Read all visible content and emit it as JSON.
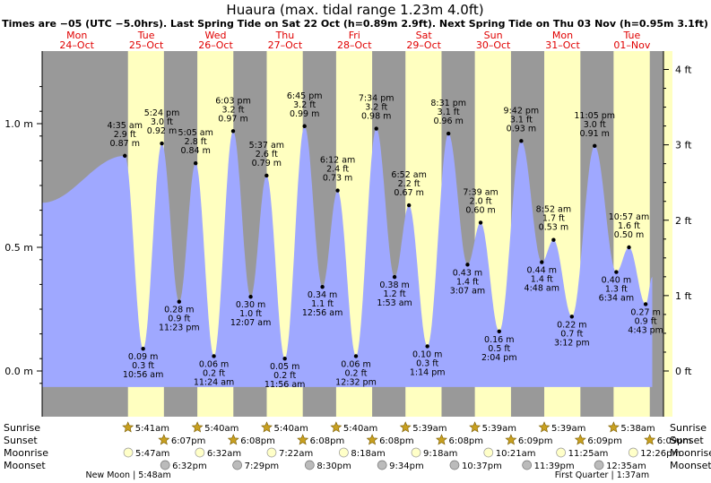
{
  "chart_data": {
    "type": "area",
    "title": "Huaura (max. tidal range 1.23m 4.0ft)",
    "subtitle": "Times are −05 (UTC −5.0hrs). Last Spring Tide on Sat 22 Oct (h=0.89m 2.9ft). Next Spring Tide on Thu 03 Nov (h=0.95m 3.1ft)",
    "days": [
      {
        "dow": "Mon",
        "date": "24–Oct"
      },
      {
        "dow": "Tue",
        "date": "25–Oct"
      },
      {
        "dow": "Wed",
        "date": "26–Oct"
      },
      {
        "dow": "Thu",
        "date": "27–Oct"
      },
      {
        "dow": "Fri",
        "date": "28–Oct"
      },
      {
        "dow": "Sat",
        "date": "29–Oct"
      },
      {
        "dow": "Sun",
        "date": "30–Oct"
      },
      {
        "dow": "Mon",
        "date": "31–Oct"
      },
      {
        "dow": "Tue",
        "date": "01–Nov"
      }
    ],
    "ylim_m": [
      -0.07,
      1.23
    ],
    "y_ticks_m": [
      "0.0 m",
      "0.5 m",
      "1.0 m"
    ],
    "y_ticks_ft": [
      "0 ft",
      "1 ft",
      "2 ft",
      "3 ft",
      "4 ft"
    ],
    "daylight_hours": [
      {
        "day": 1,
        "sunrise_h": 5.68,
        "sunset_h": 18.12
      },
      {
        "day": 2,
        "sunrise_h": 5.67,
        "sunset_h": 18.13
      },
      {
        "day": 3,
        "sunrise_h": 5.67,
        "sunset_h": 18.13
      },
      {
        "day": 4,
        "sunrise_h": 5.67,
        "sunset_h": 18.13
      },
      {
        "day": 5,
        "sunrise_h": 5.65,
        "sunset_h": 18.13
      },
      {
        "day": 6,
        "sunrise_h": 5.65,
        "sunset_h": 18.15
      },
      {
        "day": 7,
        "sunrise_h": 5.65,
        "sunset_h": 18.15
      },
      {
        "day": 8,
        "sunrise_h": 5.63,
        "sunset_h": 18.15
      }
    ],
    "tides": [
      {
        "t": 0.0,
        "h": 0.68,
        "label": false
      },
      {
        "t": 28.6,
        "h": 0.87,
        "time": "4:35 am",
        "ft": "2.9 ft",
        "m": "0.87 m",
        "type": "high"
      },
      {
        "t": 34.93,
        "h": 0.09,
        "time": "10:56 am",
        "ft": "0.3 ft",
        "m": "0.09 m",
        "type": "low"
      },
      {
        "t": 41.4,
        "h": 0.92,
        "time": "5:24 pm",
        "ft": "3.0 ft",
        "m": "0.92 m",
        "type": "high"
      },
      {
        "t": 47.38,
        "h": 0.28,
        "time": "11:23 pm",
        "ft": "0.9 ft",
        "m": "0.28 m",
        "type": "low"
      },
      {
        "t": 53.08,
        "h": 0.84,
        "time": "5:05 am",
        "ft": "2.8 ft",
        "m": "0.84 m",
        "type": "high"
      },
      {
        "t": 59.4,
        "h": 0.06,
        "time": "11:24 am",
        "ft": "0.2 ft",
        "m": "0.06 m",
        "type": "low"
      },
      {
        "t": 66.05,
        "h": 0.97,
        "time": "6:03 pm",
        "ft": "3.2 ft",
        "m": "0.97 m",
        "type": "high"
      },
      {
        "t": 72.12,
        "h": 0.3,
        "time": "12:07 am",
        "ft": "1.0 ft",
        "m": "0.30 m",
        "type": "low"
      },
      {
        "t": 77.62,
        "h": 0.79,
        "time": "5:37 am",
        "ft": "2.6 ft",
        "m": "0.79 m",
        "type": "high"
      },
      {
        "t": 83.93,
        "h": 0.05,
        "time": "11:56 am",
        "ft": "0.2 ft",
        "m": "0.05 m",
        "type": "low"
      },
      {
        "t": 90.75,
        "h": 0.99,
        "time": "6:45 pm",
        "ft": "3.2 ft",
        "m": "0.99 m",
        "type": "high"
      },
      {
        "t": 96.93,
        "h": 0.34,
        "time": "12:56 am",
        "ft": "1.1 ft",
        "m": "0.34 m",
        "type": "low"
      },
      {
        "t": 102.2,
        "h": 0.73,
        "time": "6:12 am",
        "ft": "2.4 ft",
        "m": "0.73 m",
        "type": "high"
      },
      {
        "t": 108.53,
        "h": 0.06,
        "time": "12:32 pm",
        "ft": "0.2 ft",
        "m": "0.06 m",
        "type": "low"
      },
      {
        "t": 115.57,
        "h": 0.98,
        "time": "7:34 pm",
        "ft": "3.2 ft",
        "m": "0.98 m",
        "type": "high"
      },
      {
        "t": 121.88,
        "h": 0.38,
        "time": "1:53 am",
        "ft": "1.2 ft",
        "m": "0.38 m",
        "type": "low"
      },
      {
        "t": 126.87,
        "h": 0.67,
        "time": "6:52 am",
        "ft": "2.2 ft",
        "m": "0.67 m",
        "type": "high"
      },
      {
        "t": 133.23,
        "h": 0.1,
        "time": "1:14 pm",
        "ft": "0.3 ft",
        "m": "0.10 m",
        "type": "low"
      },
      {
        "t": 140.52,
        "h": 0.96,
        "time": "8:31 pm",
        "ft": "3.1 ft",
        "m": "0.96 m",
        "type": "high"
      },
      {
        "t": 147.12,
        "h": 0.43,
        "time": "3:07 am",
        "ft": "1.4 ft",
        "m": "0.43 m",
        "type": "low"
      },
      {
        "t": 151.65,
        "h": 0.6,
        "time": "7:39 am",
        "ft": "2.0 ft",
        "m": "0.60 m",
        "type": "high"
      },
      {
        "t": 158.07,
        "h": 0.16,
        "time": "2:04 pm",
        "ft": "0.5 ft",
        "m": "0.16 m",
        "type": "low"
      },
      {
        "t": 165.7,
        "h": 0.93,
        "time": "9:42 pm",
        "ft": "3.1 ft",
        "m": "0.93 m",
        "type": "high"
      },
      {
        "t": 172.8,
        "h": 0.44,
        "time": "4:48 am",
        "ft": "1.4 ft",
        "m": "0.44 m",
        "type": "low"
      },
      {
        "t": 176.87,
        "h": 0.53,
        "time": "8:52 am",
        "ft": "1.7 ft",
        "m": "0.53 m",
        "type": "high"
      },
      {
        "t": 183.2,
        "h": 0.22,
        "time": "3:12 pm",
        "ft": "0.7 ft",
        "m": "0.22 m",
        "type": "low"
      },
      {
        "t": 191.08,
        "h": 0.91,
        "time": "11:05 pm",
        "ft": "3.0 ft",
        "m": "0.91 m",
        "type": "high"
      },
      {
        "t": 198.57,
        "h": 0.4,
        "time": "6:34 am",
        "ft": "1.3 ft",
        "m": "0.40 m",
        "type": "low"
      },
      {
        "t": 202.95,
        "h": 0.5,
        "time": "10:57 am",
        "ft": "1.6 ft",
        "m": "0.50 m",
        "type": "high"
      },
      {
        "t": 208.72,
        "h": 0.27,
        "time": "4:43 pm",
        "ft": "0.9 ft",
        "m": "0.27 m",
        "type": "low"
      },
      {
        "t": 211.0,
        "h": 0.38,
        "label": false
      }
    ],
    "rows": {
      "sunrise": {
        "label": "Sunrise",
        "items": [
          {
            "day": 1,
            "text": "5:41am",
            "h": 5.68
          },
          {
            "day": 2,
            "text": "5:40am",
            "h": 5.67
          },
          {
            "day": 3,
            "text": "5:40am",
            "h": 5.67
          },
          {
            "day": 4,
            "text": "5:40am",
            "h": 5.67
          },
          {
            "day": 5,
            "text": "5:39am",
            "h": 5.65
          },
          {
            "day": 6,
            "text": "5:39am",
            "h": 5.65
          },
          {
            "day": 7,
            "text": "5:39am",
            "h": 5.65
          },
          {
            "day": 8,
            "text": "5:38am",
            "h": 5.63
          }
        ]
      },
      "sunset": {
        "label": "Sunset",
        "items": [
          {
            "day": 1,
            "text": "6:07pm",
            "h": 18.12
          },
          {
            "day": 2,
            "text": "6:08pm",
            "h": 18.13
          },
          {
            "day": 3,
            "text": "6:08pm",
            "h": 18.13
          },
          {
            "day": 4,
            "text": "6:08pm",
            "h": 18.13
          },
          {
            "day": 5,
            "text": "6:08pm",
            "h": 18.13
          },
          {
            "day": 6,
            "text": "6:09pm",
            "h": 18.15
          },
          {
            "day": 7,
            "text": "6:09pm",
            "h": 18.15
          },
          {
            "day": 8,
            "text": "6:09pm",
            "h": 18.15
          }
        ]
      },
      "moonrise": {
        "label": "Moonrise",
        "items": [
          {
            "day": 1,
            "text": "5:47am",
            "h": 5.78
          },
          {
            "day": 2,
            "text": "6:32am",
            "h": 6.53
          },
          {
            "day": 3,
            "text": "7:22am",
            "h": 7.37
          },
          {
            "day": 4,
            "text": "8:18am",
            "h": 8.3
          },
          {
            "day": 5,
            "text": "9:18am",
            "h": 9.3
          },
          {
            "day": 6,
            "text": "10:21am",
            "h": 10.35
          },
          {
            "day": 7,
            "text": "11:25am",
            "h": 11.42
          },
          {
            "day": 8,
            "text": "12:26pm",
            "h": 12.43
          }
        ]
      },
      "moonset": {
        "label": "Moonset",
        "items": [
          {
            "day": 1,
            "text": "6:32pm",
            "h": 18.53
          },
          {
            "day": 2,
            "text": "7:29pm",
            "h": 19.48
          },
          {
            "day": 3,
            "text": "8:30pm",
            "h": 20.5
          },
          {
            "day": 4,
            "text": "9:34pm",
            "h": 21.57
          },
          {
            "day": 5,
            "text": "10:37pm",
            "h": 22.62
          },
          {
            "day": 6,
            "text": "11:39pm",
            "h": 23.65
          },
          {
            "day": 8,
            "text": "12:35am",
            "h": 0.58
          }
        ]
      }
    },
    "moon_notes": [
      {
        "text": "New Moon | 5:48am",
        "day": 1,
        "h": 5.8
      },
      {
        "text": "First Quarter | 1:37am",
        "day": 8,
        "h": 1.62
      }
    ]
  },
  "colors": {
    "night": "#999999",
    "day": "#ffffc0",
    "water": "#9fa8ff",
    "label_red": "#e00000",
    "sun": "#c8a020",
    "moonrise": "#ffffc8",
    "moonset": "#bbbbbb"
  }
}
